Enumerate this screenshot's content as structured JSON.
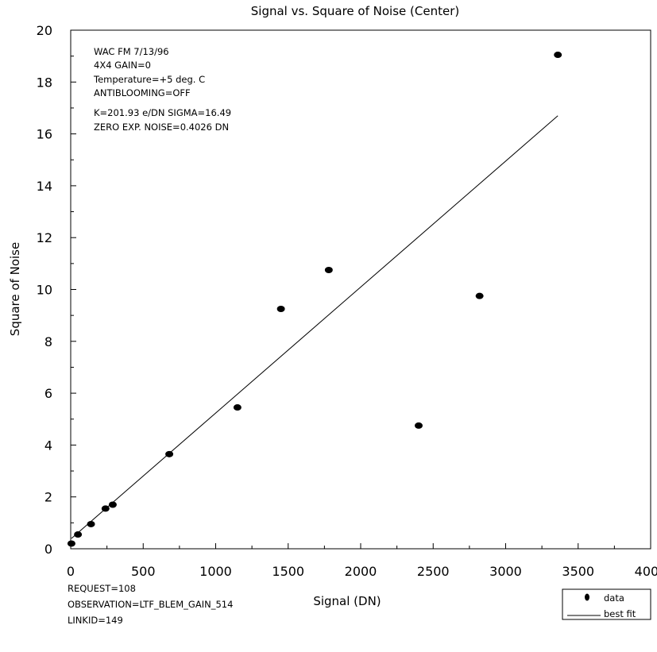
{
  "chart_data": {
    "type": "scatter",
    "title": "Signal vs. Square of Noise (Center)",
    "xlabel": "Signal (DN)",
    "ylabel": "Square of Noise",
    "xlim": [
      0,
      4000
    ],
    "ylim": [
      0,
      20
    ],
    "xticks": [
      0,
      500,
      1000,
      1500,
      2000,
      2500,
      3000,
      3500,
      4000
    ],
    "yticks": [
      0,
      2,
      4,
      6,
      8,
      10,
      12,
      14,
      16,
      18,
      20
    ],
    "xtick_labels": [
      "0",
      "500",
      "1000",
      "1500",
      "2000",
      "2500",
      "3000",
      "3500",
      "4000"
    ],
    "ytick_labels": [
      "0",
      "2",
      "4",
      "6",
      "8",
      "10",
      "12",
      "14",
      "16",
      "18",
      "20"
    ],
    "grid": false,
    "legend_position": "bottom-right",
    "series": [
      {
        "name": "data",
        "marker": "filled-ellipse",
        "x": [
          5,
          50,
          140,
          240,
          290,
          680,
          1150,
          1450,
          1780,
          2400,
          2820,
          3360
        ],
        "y": [
          0.2,
          0.55,
          0.95,
          1.55,
          1.7,
          3.65,
          5.45,
          9.25,
          10.75,
          4.75,
          9.75,
          19.05
        ]
      },
      {
        "name": "best fit",
        "type": "line",
        "x": [
          5,
          3360
        ],
        "y": [
          0.4,
          16.7
        ]
      }
    ],
    "annotations": [
      "WAC FM  7/13/96",
      "4X4  GAIN=0",
      "Temperature=+5 deg. C",
      "ANTIBLOOMING=OFF",
      "K=201.93 e/DN  SIGMA=16.49",
      "ZERO EXP. NOISE=0.4026 DN"
    ],
    "footer": [
      "REQUEST=108",
      "OBSERVATION=LTF_BLEM_GAIN_514",
      "LINKID=149"
    ]
  }
}
